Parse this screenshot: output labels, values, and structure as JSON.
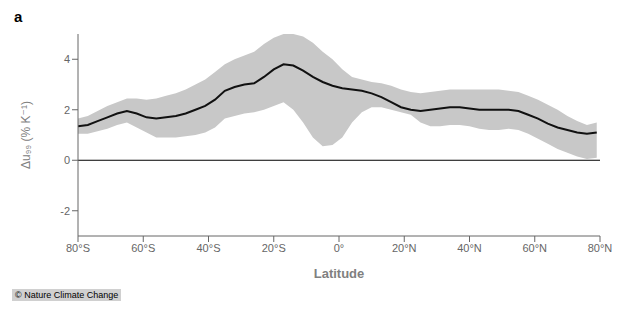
{
  "chart_data": {
    "type": "line",
    "title": "a",
    "xlabel": "Latitude",
    "ylabel": "Δu₉₉ (% K⁻¹)",
    "xlim": [
      -80,
      80
    ],
    "ylim": [
      -3,
      5
    ],
    "xticks": [
      {
        "value": -80,
        "label": "80°S"
      },
      {
        "value": -60,
        "label": "60°S"
      },
      {
        "value": -40,
        "label": "40°S"
      },
      {
        "value": -20,
        "label": "20°S"
      },
      {
        "value": 0,
        "label": "0°"
      },
      {
        "value": 20,
        "label": "20°N"
      },
      {
        "value": 40,
        "label": "40°N"
      },
      {
        "value": 60,
        "label": "60°N"
      },
      {
        "value": 80,
        "label": "80°N"
      }
    ],
    "yticks": [
      -2,
      0,
      2,
      4
    ],
    "grid": false,
    "annotations": [
      {
        "text": "© Nature Climate Change"
      }
    ],
    "hlines": [
      {
        "y": 0,
        "color": "#000000"
      }
    ],
    "x": [
      -80,
      -77,
      -74,
      -71,
      -68,
      -65,
      -62,
      -59,
      -56,
      -53,
      -50,
      -47,
      -44,
      -41,
      -38,
      -35,
      -32,
      -29,
      -26,
      -23,
      -20,
      -17,
      -14,
      -11,
      -8,
      -5,
      -2,
      1,
      4,
      7,
      10,
      13,
      16,
      19,
      22,
      25,
      28,
      31,
      34,
      37,
      40,
      43,
      46,
      49,
      52,
      55,
      58,
      61,
      64,
      67,
      70,
      73,
      76,
      79
    ],
    "series": [
      {
        "type": "band",
        "color": "#c8c8c8",
        "lower": [
          1.05,
          1.05,
          1.15,
          1.25,
          1.4,
          1.5,
          1.3,
          1.1,
          0.9,
          0.9,
          0.9,
          0.95,
          1.0,
          1.1,
          1.3,
          1.65,
          1.75,
          1.85,
          1.9,
          2.0,
          2.15,
          2.3,
          2.0,
          1.5,
          0.9,
          0.55,
          0.6,
          0.9,
          1.5,
          1.9,
          2.1,
          2.1,
          2.0,
          1.9,
          1.8,
          1.5,
          1.35,
          1.35,
          1.4,
          1.4,
          1.35,
          1.25,
          1.2,
          1.2,
          1.25,
          1.2,
          1.05,
          0.85,
          0.65,
          0.45,
          0.3,
          0.15,
          0.05,
          0.1
        ],
        "upper": [
          1.65,
          1.75,
          1.95,
          2.15,
          2.3,
          2.45,
          2.45,
          2.4,
          2.45,
          2.55,
          2.65,
          2.8,
          3.0,
          3.2,
          3.5,
          3.8,
          4.0,
          4.15,
          4.3,
          4.6,
          4.85,
          5.0,
          5.0,
          4.9,
          4.65,
          4.3,
          4.0,
          3.6,
          3.3,
          3.2,
          3.1,
          3.05,
          2.95,
          2.8,
          2.7,
          2.65,
          2.7,
          2.75,
          2.8,
          2.8,
          2.8,
          2.8,
          2.8,
          2.8,
          2.75,
          2.7,
          2.55,
          2.4,
          2.2,
          2.0,
          1.75,
          1.55,
          1.4,
          1.5
        ]
      },
      {
        "type": "line",
        "color": "#111111",
        "values": [
          1.35,
          1.4,
          1.55,
          1.7,
          1.85,
          1.95,
          1.85,
          1.7,
          1.65,
          1.7,
          1.75,
          1.85,
          2.0,
          2.15,
          2.4,
          2.75,
          2.9,
          3.0,
          3.05,
          3.3,
          3.6,
          3.8,
          3.75,
          3.55,
          3.3,
          3.1,
          2.95,
          2.85,
          2.8,
          2.75,
          2.65,
          2.5,
          2.3,
          2.1,
          2.0,
          1.95,
          2.0,
          2.05,
          2.1,
          2.1,
          2.05,
          2.0,
          2.0,
          2.0,
          2.0,
          1.95,
          1.8,
          1.65,
          1.45,
          1.3,
          1.2,
          1.1,
          1.05,
          1.1
        ]
      }
    ]
  }
}
